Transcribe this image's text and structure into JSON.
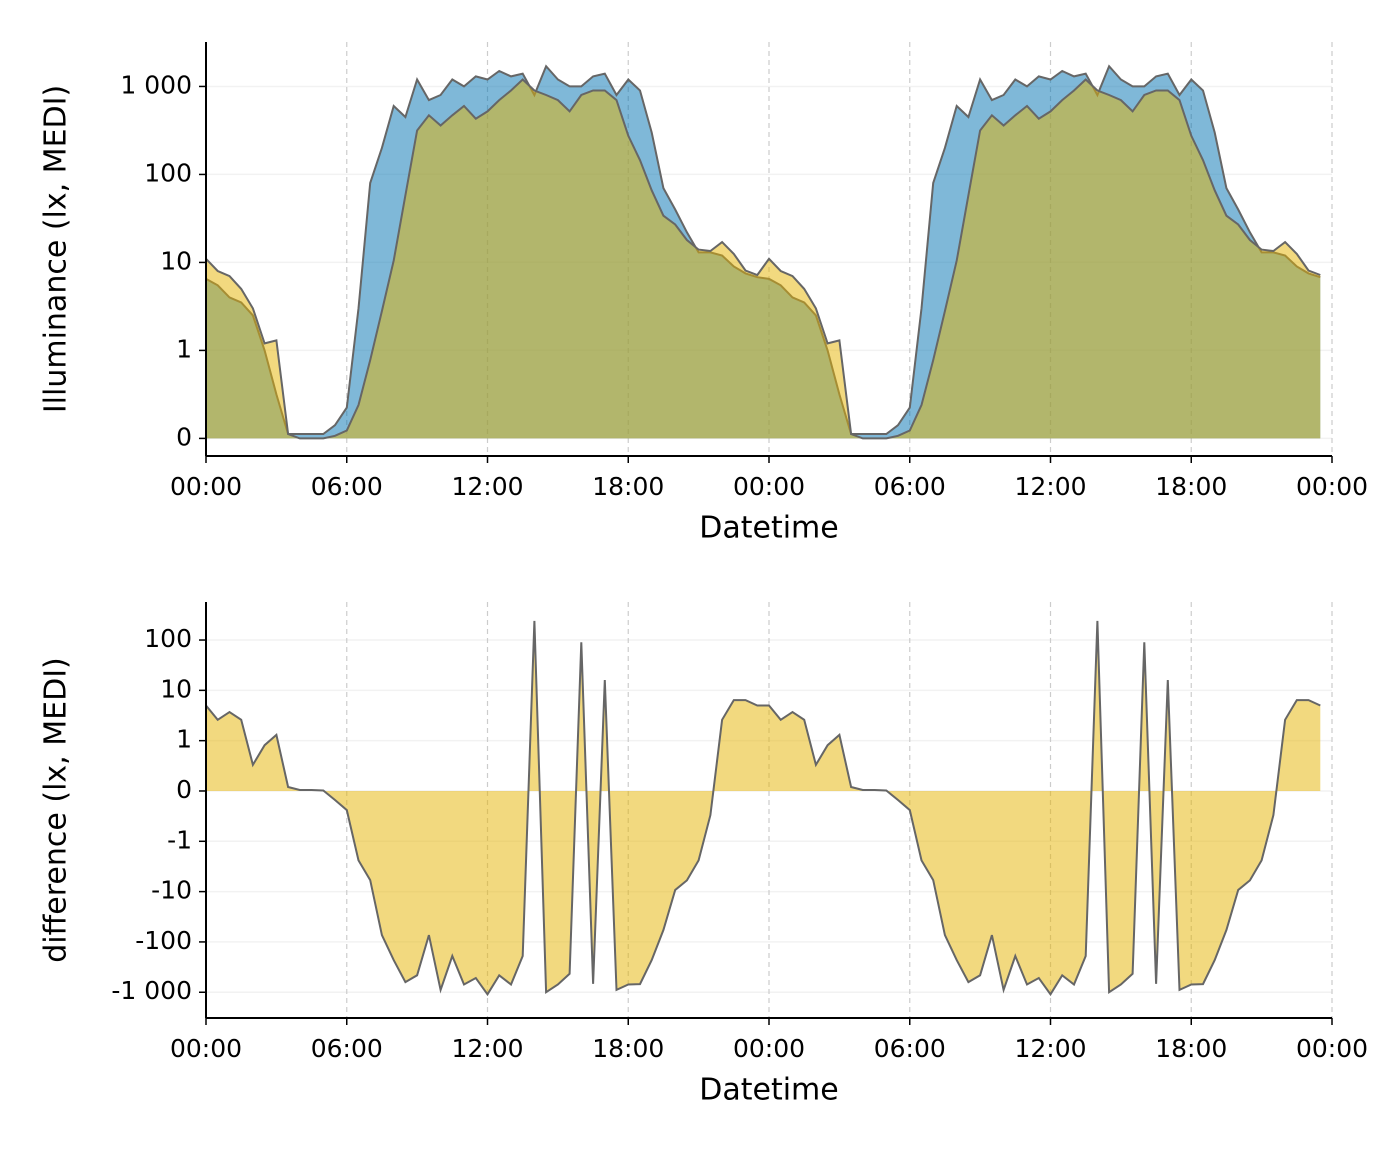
{
  "chart_data": [
    {
      "type": "area",
      "yscale": "symlog",
      "linthresh": 1,
      "alpha": 0.5,
      "line_color": "#666666",
      "ylabel": "Illuminance (lx, MEDI)",
      "xlabel": "Datetime",
      "x": [
        0,
        0.5,
        1,
        1.5,
        2,
        2.5,
        3,
        3.5,
        4,
        4.5,
        5,
        5.5,
        6,
        6.5,
        7,
        7.5,
        8,
        8.5,
        9,
        9.5,
        10,
        10.5,
        11,
        11.5,
        12,
        12.5,
        13,
        13.5,
        14,
        14.5,
        15,
        15.5,
        16,
        16.5,
        17,
        17.5,
        18,
        18.5,
        19,
        19.5,
        20,
        20.5,
        21,
        21.5,
        22,
        22.5,
        23,
        23.5,
        24,
        24.5,
        25,
        25.5,
        26,
        26.5,
        27,
        27.5,
        28,
        28.5,
        29,
        29.5,
        30,
        30.5,
        31,
        31.5,
        32,
        32.5,
        33,
        33.5,
        34,
        34.5,
        35,
        35.5,
        36,
        36.5,
        37,
        37.5,
        38,
        38.5,
        39,
        39.5,
        40,
        40.5,
        41,
        41.5,
        42,
        42.5,
        43,
        43.5,
        44,
        44.5,
        45,
        45.5,
        46,
        46.5,
        47,
        47.5
      ],
      "series": [
        {
          "color": "#0072b2",
          "values": [
            6.5,
            5.5,
            4,
            3.5,
            2.5,
            1,
            0.5,
            0.05,
            0.05,
            0.05,
            0.05,
            0.15,
            0.35,
            3,
            80,
            200,
            600,
            450,
            1200,
            700,
            800,
            1200,
            1000,
            1300,
            1200,
            1500,
            1300,
            1400,
            800,
            1700,
            1200,
            1000,
            1000,
            1300,
            1400,
            800,
            1200,
            900,
            300,
            70,
            40,
            22,
            13,
            13,
            12,
            9,
            7.5,
            6.8,
            6.5,
            5.5,
            4,
            3.5,
            2.5,
            1,
            0.5,
            0.05,
            0.05,
            0.05,
            0.05,
            0.15,
            0.35,
            3,
            80,
            200,
            600,
            450,
            1200,
            700,
            800,
            1200,
            1000,
            1300,
            1200,
            1500,
            1300,
            1400,
            800,
            1700,
            1200,
            1000,
            1000,
            1300,
            1400,
            800,
            1200,
            900,
            300,
            70,
            40,
            22,
            13,
            13,
            12,
            9,
            7.5,
            6.8
          ]
        },
        {
          "color": "#e6b400",
          "values": [
            11,
            8,
            7,
            5,
            3,
            1.2,
            1.3,
            0.05,
            0,
            0,
            0,
            0.03,
            0.09,
            0.38,
            0.89,
            2.8,
            10.5,
            58,
            316,
            470,
            360,
            470,
            600,
            430,
            520,
            700,
            900,
            1200,
            900,
            800,
            700,
            520,
            800,
            900,
            900,
            700,
            275,
            145,
            66,
            34,
            27,
            18,
            14,
            13.5,
            17,
            12.5,
            8.1,
            7.2,
            11,
            8,
            7,
            5,
            3,
            1.2,
            1.3,
            0.05,
            0,
            0,
            0,
            0.03,
            0.09,
            0.38,
            0.89,
            2.8,
            10.5,
            58,
            316,
            470,
            360,
            470,
            600,
            430,
            520,
            700,
            900,
            1200,
            900,
            800,
            700,
            520,
            800,
            900,
            900,
            700,
            275,
            145,
            66,
            34,
            27,
            18,
            14,
            13.5,
            17,
            12.5,
            8.1,
            7.2
          ]
        }
      ],
      "xlim": [
        0,
        48
      ],
      "xticks": [
        {
          "value": 0,
          "label": "00:00"
        },
        {
          "value": 6,
          "label": "06:00"
        },
        {
          "value": 12,
          "label": "12:00"
        },
        {
          "value": 18,
          "label": "18:00"
        },
        {
          "value": 24,
          "label": "00:00"
        },
        {
          "value": 30,
          "label": "06:00"
        },
        {
          "value": 36,
          "label": "12:00"
        },
        {
          "value": 42,
          "label": "18:00"
        },
        {
          "value": 48,
          "label": "00:00"
        }
      ],
      "ylim": [
        -0.2,
        3200
      ],
      "yticks": [
        0,
        1,
        10,
        100,
        {
          "value": 1000,
          "label": "1 000"
        }
      ],
      "grid": true
    },
    {
      "type": "area",
      "yscale": "symlog",
      "linthresh": 1,
      "alpha": 0.5,
      "line_color": "#666666",
      "ylabel": "difference (lx, MEDI)",
      "xlabel": "Datetime",
      "x": [
        0,
        0.5,
        1,
        1.5,
        2,
        2.5,
        3,
        3.5,
        4,
        4.5,
        5,
        5.5,
        6,
        6.5,
        7,
        7.5,
        8,
        8.5,
        9,
        9.5,
        10,
        10.5,
        11,
        11.5,
        12,
        12.5,
        13,
        13.5,
        14,
        14.5,
        15,
        15.5,
        16,
        16.5,
        17,
        17.5,
        18,
        18.5,
        19,
        19.5,
        20,
        20.5,
        21,
        21.5,
        22,
        22.5,
        23,
        23.5,
        24,
        24.5,
        25,
        25.5,
        26,
        26.5,
        27,
        27.5,
        28,
        28.5,
        29,
        29.5,
        30,
        30.5,
        31,
        31.5,
        32,
        32.5,
        33,
        33.5,
        34,
        34.5,
        35,
        35.5,
        36,
        36.5,
        37,
        37.5,
        38,
        38.5,
        39,
        39.5,
        40,
        40.5,
        41,
        41.5,
        42,
        42.5,
        43,
        43.5,
        44,
        44.5,
        45,
        45.5,
        46,
        46.5,
        47,
        47.5
      ],
      "series": [
        {
          "color": "#e6b400",
          "values": [
            5,
            2.6,
            3.7,
            2.6,
            0.52,
            0.91,
            1.3,
            0.08,
            0.02,
            0.02,
            0.01,
            -0.18,
            -0.38,
            -2.4,
            -5.9,
            -73,
            -230,
            -630,
            -460,
            -73,
            -900,
            -190,
            -700,
            -520,
            -1100,
            -460,
            -700,
            -190,
            240,
            -1000,
            -700,
            -430,
            90,
            -680,
            16,
            -900,
            -700,
            -690,
            -230,
            -58,
            -9.3,
            -6,
            -2.4,
            -0.48,
            2.6,
            6.4,
            6.4,
            5,
            5,
            2.6,
            3.7,
            2.6,
            0.52,
            0.91,
            1.3,
            0.08,
            0.02,
            0.02,
            0.01,
            -0.18,
            -0.38,
            -2.4,
            -5.9,
            -73,
            -230,
            -630,
            -460,
            -73,
            -900,
            -190,
            -700,
            -520,
            -1100,
            -460,
            -700,
            -190,
            240,
            -1000,
            -700,
            -430,
            90,
            -680,
            16,
            -900,
            -700,
            -690,
            -230,
            -58,
            -9.3,
            -6,
            -2.4,
            -0.48,
            2.6,
            6.4,
            6.4,
            5
          ]
        }
      ],
      "xlim": [
        0,
        48
      ],
      "xticks": [
        {
          "value": 0,
          "label": "00:00"
        },
        {
          "value": 6,
          "label": "06:00"
        },
        {
          "value": 12,
          "label": "12:00"
        },
        {
          "value": 18,
          "label": "18:00"
        },
        {
          "value": 24,
          "label": "00:00"
        },
        {
          "value": 30,
          "label": "06:00"
        },
        {
          "value": 36,
          "label": "12:00"
        },
        {
          "value": 42,
          "label": "18:00"
        },
        {
          "value": 48,
          "label": "00:00"
        }
      ],
      "ylim": [
        -3250,
        570
      ],
      "yticks": [
        100,
        10,
        1,
        0,
        -1,
        -10,
        -100,
        {
          "value": -1000,
          "label": "-1 000"
        }
      ],
      "grid": true
    }
  ]
}
